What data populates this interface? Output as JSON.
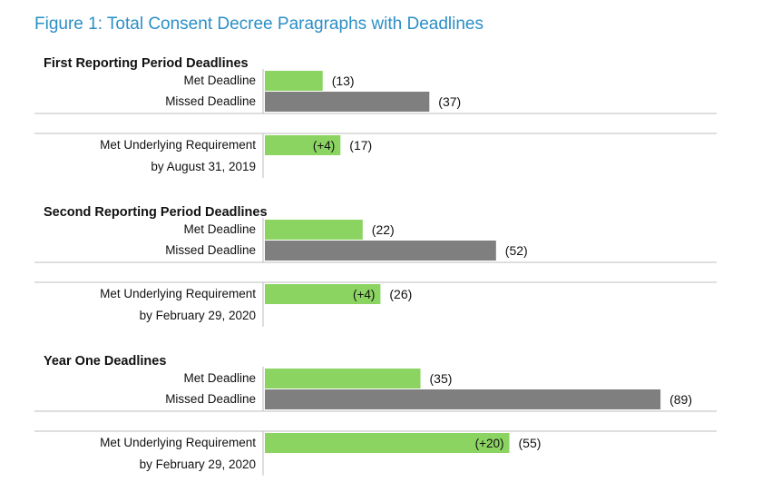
{
  "figure_title": "Figure 1: Total Consent Decree Paragraphs with Deadlines",
  "colors": {
    "met": "#8bd462",
    "missed": "#7f7f7f",
    "title": "#2a8fc7",
    "rule": "#bdbdbd"
  },
  "chart_data": [
    {
      "type": "bar",
      "orientation": "horizontal",
      "title": "First Reporting Period Deadlines",
      "bars": [
        {
          "label": "Met Deadline",
          "value": 13,
          "value_label": "(13)",
          "color": "met"
        },
        {
          "label": "Missed Deadline",
          "value": 37,
          "value_label": "(37)",
          "color": "missed"
        }
      ],
      "underlying": {
        "label_lines": [
          "Met Underlying Requirement",
          "by August 31, 2019"
        ],
        "value": 17,
        "value_label": "(17)",
        "increase_label": "(+4)",
        "color": "met"
      }
    },
    {
      "type": "bar",
      "orientation": "horizontal",
      "title": "Second Reporting Period Deadlines",
      "bars": [
        {
          "label": "Met Deadline",
          "value": 22,
          "value_label": "(22)",
          "color": "met"
        },
        {
          "label": "Missed Deadline",
          "value": 52,
          "value_label": "(52)",
          "color": "missed"
        }
      ],
      "underlying": {
        "label_lines": [
          "Met Underlying Requirement",
          "by February 29, 2020"
        ],
        "value": 26,
        "value_label": "(26)",
        "increase_label": "(+4)",
        "color": "met"
      }
    },
    {
      "type": "bar",
      "orientation": "horizontal",
      "title": "Year One Deadlines",
      "bars": [
        {
          "label": "Met Deadline",
          "value": 35,
          "value_label": "(35)",
          "color": "met"
        },
        {
          "label": "Missed Deadline",
          "value": 89,
          "value_label": "(89)",
          "color": "missed"
        }
      ],
      "underlying": {
        "label_lines": [
          "Met Underlying Requirement",
          "by February 29, 2020"
        ],
        "value": 55,
        "value_label": "(55)",
        "increase_label": "(+20)",
        "color": "met"
      }
    }
  ]
}
